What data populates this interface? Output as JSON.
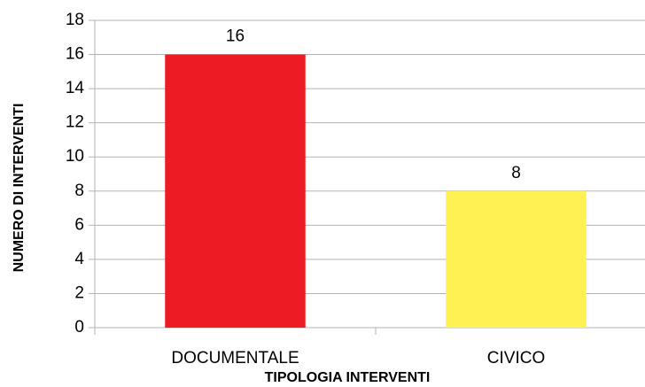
{
  "chart_data": {
    "type": "bar",
    "categories": [
      "DOCUMENTALE",
      "CIVICO"
    ],
    "values": [
      16,
      8
    ],
    "colors": [
      "#ed1c24",
      "#fff153"
    ],
    "x_label": "TIPOLOGIA INTERVENTI",
    "y_label": "NUMERO DI INTERVENTI",
    "ylim": [
      0,
      18
    ],
    "yticks": [
      0,
      2,
      4,
      6,
      8,
      10,
      12,
      14,
      16,
      18
    ],
    "grid": true
  }
}
